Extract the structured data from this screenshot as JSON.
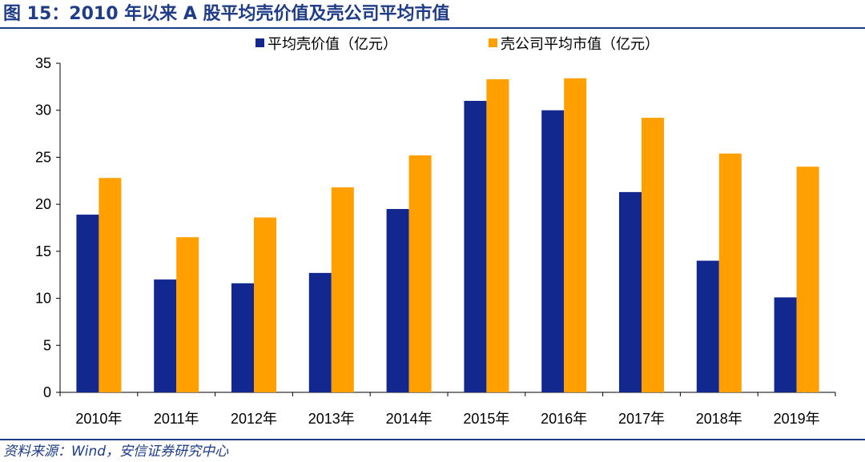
{
  "figure_title": "图 15：2010 年以来 A 股平均壳价值及壳公司平均市值",
  "source": "资料来源：Wind，安信证券研究中心",
  "colors": {
    "accent": "#1f3c88",
    "series_1": "#13288f",
    "series_2": "#ff9f00"
  },
  "chart_data": {
    "type": "bar",
    "categories": [
      "2010年",
      "2011年",
      "2012年",
      "2013年",
      "2014年",
      "2015年",
      "2016年",
      "2017年",
      "2018年",
      "2019年"
    ],
    "series": [
      {
        "name": "平均壳价值（亿元）",
        "color": "#13288f",
        "values": [
          18.9,
          12.0,
          11.6,
          12.7,
          19.5,
          31.0,
          30.0,
          21.3,
          14.0,
          10.1
        ]
      },
      {
        "name": "壳公司平均市值（亿元）",
        "color": "#ff9f00",
        "values": [
          22.8,
          16.5,
          18.6,
          21.8,
          25.2,
          33.3,
          33.4,
          29.2,
          25.4,
          24.0
        ]
      }
    ],
    "ylim": [
      0,
      35
    ],
    "yticks": [
      0,
      5,
      10,
      15,
      20,
      25,
      30,
      35
    ],
    "xlabel": "",
    "ylabel": "",
    "grid": false,
    "legend_position": "top"
  }
}
